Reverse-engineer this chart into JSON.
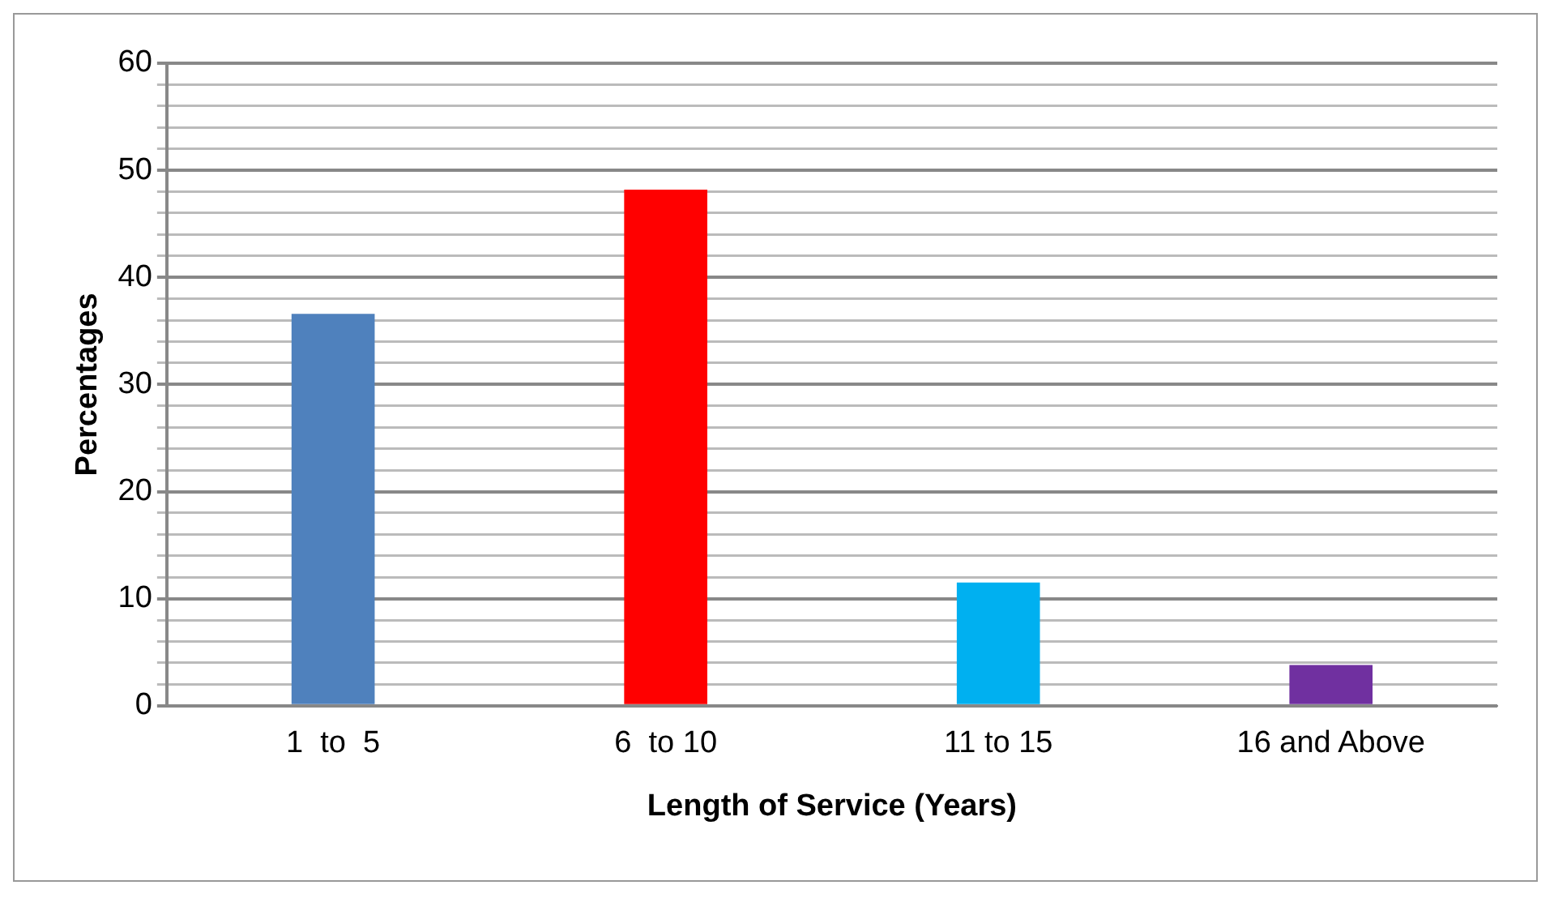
{
  "chart_data": {
    "type": "bar",
    "xlabel": "Length of Service (Years)",
    "ylabel": "Percentages",
    "categories": [
      "1  to  5",
      "6  to 10",
      "11 to 15",
      "16 and Above"
    ],
    "values": [
      36.6,
      48.2,
      11.5,
      3.8
    ],
    "colors": [
      "#4f81bd",
      "#ff0000",
      "#00b0f0",
      "#7030a0"
    ],
    "ylim": [
      0,
      60
    ],
    "yticks": [
      0,
      {
        "value": 2,
        "label": null
      },
      {
        "value": 4,
        "label": null
      },
      {
        "value": 6,
        "label": null
      },
      {
        "value": 8,
        "label": null
      },
      10,
      {
        "value": 12,
        "label": null
      },
      {
        "value": 14,
        "label": null
      },
      {
        "value": 16,
        "label": null
      },
      {
        "value": 18,
        "label": null
      },
      20,
      {
        "value": 22,
        "label": null
      },
      {
        "value": 24,
        "label": null
      },
      {
        "value": 26,
        "label": null
      },
      {
        "value": 28,
        "label": null
      },
      30,
      {
        "value": 32,
        "label": null
      },
      {
        "value": 34,
        "label": null
      },
      {
        "value": 36,
        "label": null
      },
      {
        "value": 38,
        "label": null
      },
      40,
      {
        "value": 42,
        "label": null
      },
      {
        "value": 44,
        "label": null
      },
      {
        "value": 46,
        "label": null
      },
      {
        "value": 48,
        "label": null
      },
      50,
      {
        "value": 52,
        "label": null
      },
      {
        "value": 54,
        "label": null
      },
      {
        "value": 56,
        "label": null
      },
      {
        "value": 58,
        "label": null
      },
      60
    ],
    "grid": "y",
    "legend": false
  }
}
